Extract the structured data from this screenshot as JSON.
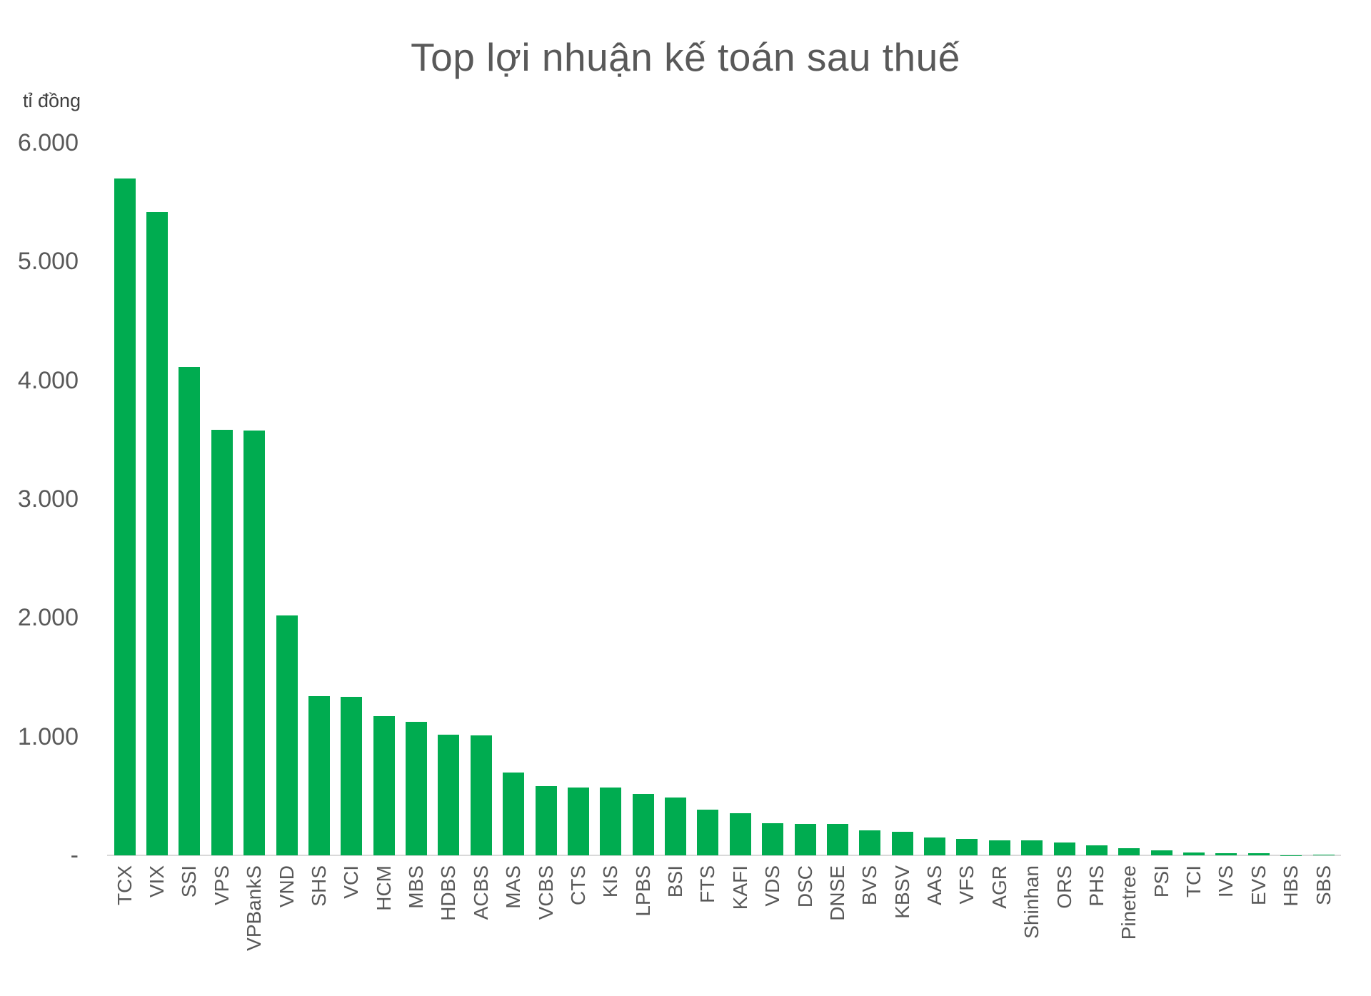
{
  "chart_data": {
    "type": "bar",
    "title": "Top lợi nhuận kế toán sau thuế",
    "unit_label": "tỉ đồng",
    "categories": [
      "TCX",
      "VIX",
      "SSI",
      "VPS",
      "VPBankS",
      "VND",
      "SHS",
      "VCI",
      "HCM",
      "MBS",
      "HDBS",
      "ACBS",
      "MAS",
      "VCBS",
      "CTS",
      "KIS",
      "LPBS",
      "BSI",
      "FTS",
      "KAFI",
      "VDS",
      "DSC",
      "DNSE",
      "BVS",
      "KBSV",
      "AAS",
      "VFS",
      "AGR",
      "Shinhan",
      "ORS",
      "PHS",
      "Pinetree",
      "PSI",
      "TCI",
      "IVS",
      "EVS",
      "HBS",
      "SBS"
    ],
    "values": [
      5700,
      5420,
      4110,
      3585,
      3578,
      2018,
      1343,
      1337,
      1175,
      1125,
      1018,
      1013,
      695,
      584,
      572,
      571,
      516,
      486,
      386,
      355,
      271,
      265,
      263,
      211,
      199,
      151,
      139,
      127,
      125,
      110,
      85,
      60,
      45,
      25,
      18,
      16,
      2,
      5
    ],
    "xlabel": "",
    "ylabel": "tỉ đồng",
    "ylim": [
      0,
      6000
    ],
    "yticks": [
      {
        "label": "6.000",
        "value": 6000
      },
      {
        "label": "5.000",
        "value": 5000
      },
      {
        "label": "4.000",
        "value": 4000
      },
      {
        "label": "3.000",
        "value": 3000
      },
      {
        "label": "2.000",
        "value": 2000
      },
      {
        "label": "1.000",
        "value": 1000
      },
      {
        "label": "-",
        "value": 0
      }
    ],
    "grid": "off",
    "legend": "none",
    "bar_color": "#00AC50",
    "axis_line_color": "#D9D9D9",
    "text_color": "#595959"
  }
}
